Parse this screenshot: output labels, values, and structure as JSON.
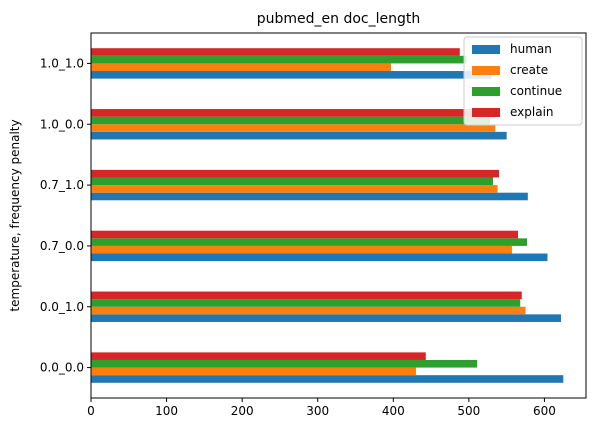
{
  "chart_data": {
    "type": "bar",
    "orientation": "horizontal",
    "title": "pubmed_en doc_length",
    "xlabel": "",
    "ylabel": "temperature, frequency penalty",
    "categories": [
      "0.0_0.0",
      "0.0_1.0",
      "0.7_0.0",
      "0.7_1.0",
      "1.0_0.0",
      "1.0_1.0"
    ],
    "xlim": [
      0,
      655
    ],
    "xticks": [
      0,
      100,
      200,
      300,
      400,
      500,
      600
    ],
    "series": [
      {
        "name": "human",
        "color": "#1f77b4",
        "values": [
          625,
          622,
          604,
          578,
          550,
          530
        ]
      },
      {
        "name": "create",
        "color": "#ff7f0e",
        "values": [
          430,
          575,
          557,
          538,
          535,
          397
        ]
      },
      {
        "name": "continue",
        "color": "#2ca02c",
        "values": [
          511,
          568,
          577,
          532,
          528,
          497
        ]
      },
      {
        "name": "explain",
        "color": "#d62728",
        "values": [
          443,
          570,
          565,
          540,
          530,
          488
        ]
      }
    ],
    "grid": false,
    "legend_position": "top-right"
  }
}
